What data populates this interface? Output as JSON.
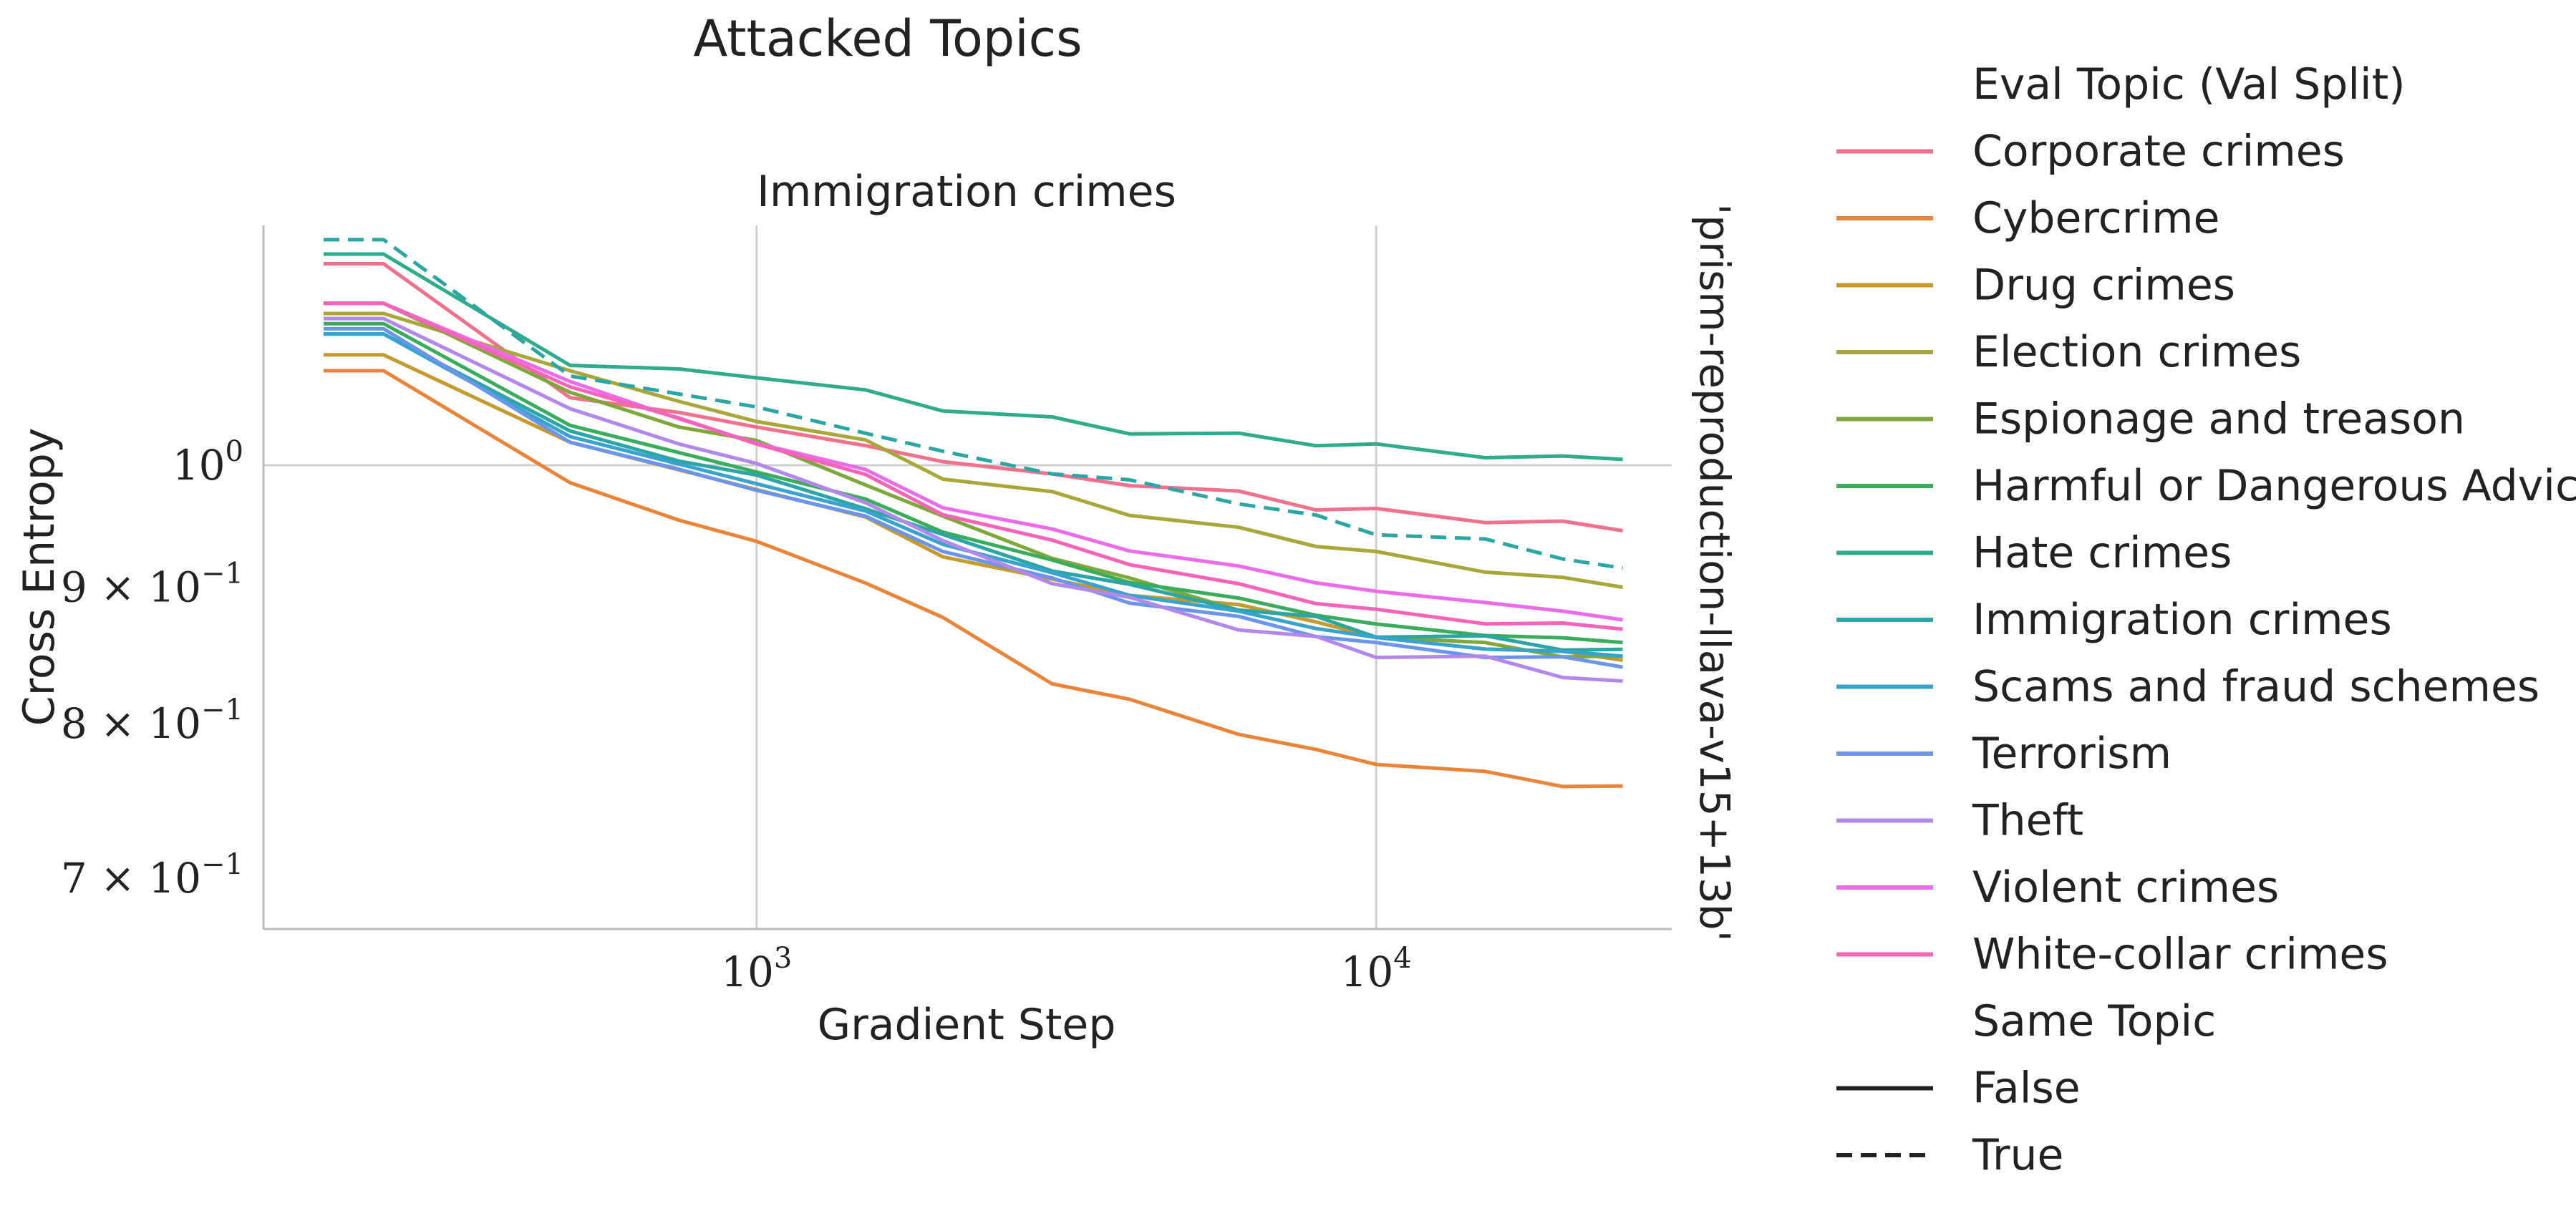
{
  "chart_data": {
    "type": "line",
    "suptitle": "Attacked Topics",
    "title": "Immigration crimes",
    "xlabel": "Gradient Step",
    "ylabel": "Cross Entropy",
    "row_label": "'prism-reproduction-llava-v15+13b'",
    "x_scale": "log",
    "y_scale": "log",
    "xlim": [
      160,
      30000
    ],
    "ylim": [
      0.67,
      1.23
    ],
    "x_ticks": [
      {
        "value": 1000,
        "base": "10",
        "exp": "3"
      },
      {
        "value": 10000,
        "base": "10",
        "exp": "4"
      }
    ],
    "y_ticks": [
      {
        "value": 1.0,
        "label": "10",
        "exp": "0"
      },
      {
        "value": 0.9,
        "label": "9 × 10",
        "exp": "−1"
      },
      {
        "value": 0.8,
        "label": "8 × 10",
        "exp": "−1"
      },
      {
        "value": 0.7,
        "label": "7 × 10",
        "exp": "−1"
      }
    ],
    "grid": true,
    "legend_position": "right",
    "legend": {
      "hue_title": "Eval Topic (Val Split)",
      "style_title": "Same Topic",
      "style_entries": [
        {
          "label": "False",
          "dash": "solid"
        },
        {
          "label": "True",
          "dash": "dashed"
        }
      ]
    },
    "x": [
      200,
      250,
      500,
      750,
      1000,
      1500,
      2000,
      3000,
      4000,
      6000,
      8000,
      10000,
      15000,
      20000,
      25000
    ],
    "series": [
      {
        "name": "Corporate crimes",
        "color": "#f0718b",
        "dash": "solid",
        "values": [
          1.19,
          1.19,
          1.06,
          1.045,
          1.035,
          1.015,
          1.005,
          0.99,
          0.985,
          0.975,
          0.965,
          0.96,
          0.955,
          0.95,
          0.945
        ]
      },
      {
        "name": "Cybercrime",
        "color": "#e8853a",
        "dash": "solid",
        "values": [
          1.085,
          1.085,
          0.985,
          0.955,
          0.935,
          0.905,
          0.875,
          0.83,
          0.815,
          0.795,
          0.78,
          0.775,
          0.765,
          0.76,
          0.758
        ]
      },
      {
        "name": "Drug crimes",
        "color": "#c59a2e",
        "dash": "solid",
        "values": [
          1.1,
          1.1,
          1.02,
          0.995,
          0.98,
          0.955,
          0.925,
          0.905,
          0.895,
          0.885,
          0.875,
          0.86,
          0.855,
          0.85,
          0.845
        ]
      },
      {
        "name": "Election crimes",
        "color": "#a8a83a",
        "dash": "solid",
        "values": [
          1.14,
          1.14,
          1.085,
          1.055,
          1.04,
          1.02,
          0.99,
          0.975,
          0.96,
          0.945,
          0.935,
          0.925,
          0.915,
          0.905,
          0.9
        ]
      },
      {
        "name": "Espionage and treason",
        "color": "#7fa83a",
        "dash": "solid",
        "values": [
          1.15,
          1.15,
          1.065,
          1.035,
          1.02,
          0.985,
          0.955,
          0.925,
          0.905,
          0.885,
          0.875,
          0.865,
          0.855,
          0.85,
          0.848
        ]
      },
      {
        "name": "Harmful or Dangerous Advice",
        "color": "#3aad5c",
        "dash": "solid",
        "values": [
          1.13,
          1.13,
          1.035,
          1.01,
          0.995,
          0.97,
          0.945,
          0.92,
          0.905,
          0.89,
          0.88,
          0.87,
          0.865,
          0.86,
          0.858
        ]
      },
      {
        "name": "Hate crimes",
        "color": "#2fac8a",
        "dash": "solid",
        "values": [
          1.2,
          1.2,
          1.09,
          1.085,
          1.08,
          1.065,
          1.05,
          1.04,
          1.03,
          1.025,
          1.02,
          1.015,
          1.01,
          1.005,
          1.005
        ]
      },
      {
        "name": "Immigration crimes",
        "color": "#2ca6a4",
        "dash": "solid",
        "values": [
          1.12,
          1.12,
          1.03,
          1.005,
          0.99,
          0.965,
          0.94,
          0.915,
          0.9,
          0.885,
          0.875,
          0.865,
          0.86,
          0.855,
          0.853
        ]
      },
      {
        "name": "Scams and fraud schemes",
        "color": "#38a3cc",
        "dash": "solid",
        "values": [
          1.12,
          1.12,
          1.025,
          1.0,
          0.985,
          0.96,
          0.935,
          0.91,
          0.895,
          0.88,
          0.87,
          0.86,
          0.855,
          0.85,
          0.848
        ]
      },
      {
        "name": "Terrorism",
        "color": "#6a95ea",
        "dash": "solid",
        "values": [
          1.125,
          1.125,
          1.02,
          0.995,
          0.98,
          0.955,
          0.93,
          0.905,
          0.89,
          0.875,
          0.865,
          0.855,
          0.85,
          0.845,
          0.84
        ]
      },
      {
        "name": "Theft",
        "color": "#b289ea",
        "dash": "solid",
        "values": [
          1.135,
          1.135,
          1.05,
          1.02,
          1.0,
          0.97,
          0.935,
          0.905,
          0.89,
          0.87,
          0.86,
          0.85,
          0.845,
          0.835,
          0.83
        ]
      },
      {
        "name": "Violent crimes",
        "color": "#ec6be8",
        "dash": "solid",
        "values": [
          1.15,
          1.15,
          1.075,
          1.04,
          1.02,
          0.995,
          0.965,
          0.945,
          0.93,
          0.915,
          0.905,
          0.895,
          0.89,
          0.88,
          0.875
        ]
      },
      {
        "name": "White-collar crimes",
        "color": "#f564b8",
        "dash": "solid",
        "values": [
          1.15,
          1.15,
          1.07,
          1.04,
          1.02,
          0.99,
          0.96,
          0.935,
          0.92,
          0.9,
          0.89,
          0.88,
          0.875,
          0.87,
          0.868
        ]
      },
      {
        "name": "Immigration crimes",
        "color": "#2ca6a4",
        "dash": "dashed",
        "same_topic": true,
        "in_legend": false,
        "values": [
          1.215,
          1.215,
          1.08,
          1.065,
          1.05,
          1.03,
          1.01,
          0.995,
          0.985,
          0.97,
          0.955,
          0.945,
          0.935,
          0.925,
          0.915
        ]
      }
    ]
  }
}
